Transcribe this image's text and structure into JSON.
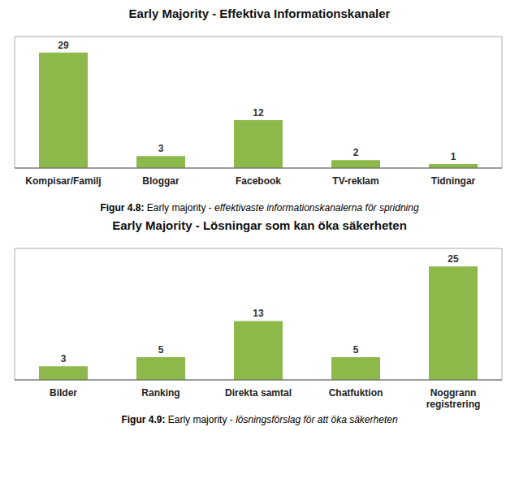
{
  "chart_data": [
    {
      "type": "bar",
      "title": "Early Majority - Effektiva Informationskanaler",
      "categories": [
        "Kompisar/Familj",
        "Bloggar",
        "Facebook",
        "TV-reklam",
        "Tidningar"
      ],
      "values": [
        29,
        3,
        12,
        2,
        1
      ],
      "color": "#8DB84A",
      "ylim": [
        0,
        33
      ],
      "grid": false,
      "data_labels": true,
      "tick_labels": "x",
      "annotations": [
        "Figur 4.8: Early majority - effektivaste informationskanalerna för spridning"
      ]
    },
    {
      "type": "bar",
      "title": "Early Majority - Lösningar som kan öka säkerheten",
      "categories": [
        "Bilder",
        "Ranking",
        "Direkta samtal",
        "Chatfuktion",
        "Noggrann\nregistrering"
      ],
      "values": [
        3,
        5,
        13,
        5,
        25
      ],
      "color": "#8DB84A",
      "ylim": [
        0,
        29
      ],
      "grid": false,
      "data_labels": true,
      "tick_labels": "x",
      "annotations": [
        "Figur 4.9: Early majority - lösningsförslag för att öka säkerheten"
      ]
    }
  ]
}
